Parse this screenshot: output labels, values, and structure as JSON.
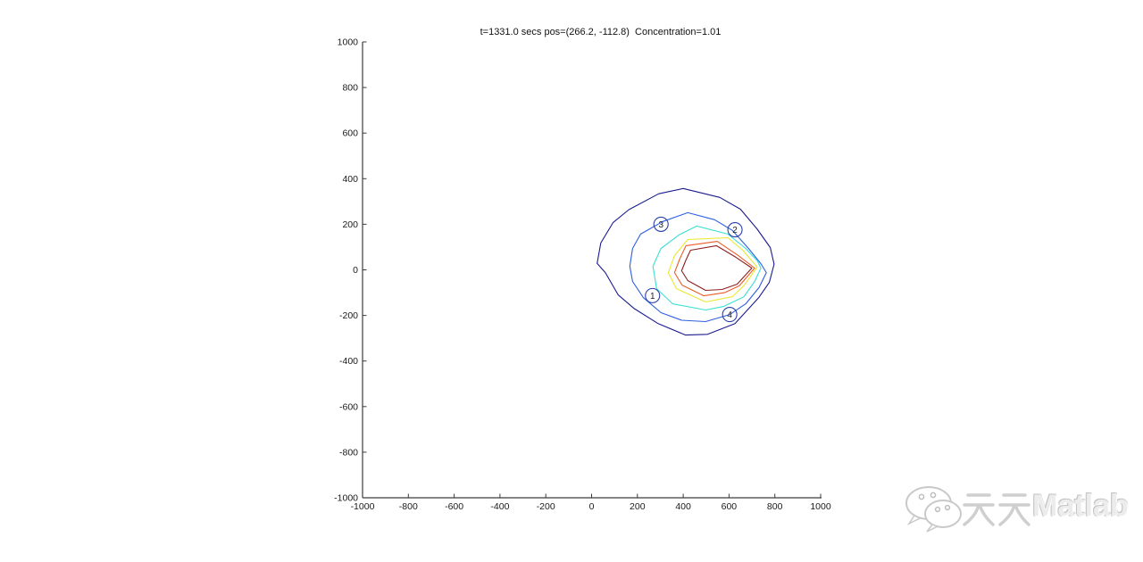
{
  "figure": {
    "background": "#ffffff"
  },
  "chart_data": {
    "type": "contour",
    "title": "t=1331.0 secs pos=(266.2, -112.8)  Concentration=1.01",
    "xlabel": "",
    "ylabel": "",
    "xlim": [
      -1000,
      1000
    ],
    "ylim": [
      -1000,
      1000
    ],
    "xticks": [
      -1000,
      -800,
      -600,
      -400,
      -200,
      0,
      200,
      400,
      600,
      800,
      1000
    ],
    "yticks": [
      -1000,
      -800,
      -600,
      -400,
      -200,
      0,
      200,
      400,
      600,
      800,
      1000
    ],
    "grid": false,
    "legend_position": "none",
    "axis_color": "#3c3c3c",
    "tick_label_color": "#1a1a1a",
    "contour_levels": [
      {
        "index": 1,
        "color": "#1b1b8f",
        "points": [
          [
            400,
            357
          ],
          [
            560,
            318
          ],
          [
            650,
            266
          ],
          [
            722,
            180
          ],
          [
            780,
            98
          ],
          [
            797,
            25
          ],
          [
            776,
            -55
          ],
          [
            731,
            -120
          ],
          [
            626,
            -236
          ],
          [
            506,
            -283
          ],
          [
            410,
            -286
          ],
          [
            291,
            -236
          ],
          [
            186,
            -170
          ],
          [
            116,
            -110
          ],
          [
            60,
            -12
          ],
          [
            24,
            28
          ],
          [
            40,
            118
          ],
          [
            94,
            208
          ],
          [
            163,
            264
          ],
          [
            293,
            334
          ]
        ]
      },
      {
        "index": 2,
        "color": "#2e5fe0",
        "points": [
          [
            420,
            251
          ],
          [
            537,
            220
          ],
          [
            615,
            173
          ],
          [
            685,
            94
          ],
          [
            739,
            27
          ],
          [
            763,
            -12
          ],
          [
            731,
            -78
          ],
          [
            673,
            -149
          ],
          [
            603,
            -196
          ],
          [
            498,
            -227
          ],
          [
            393,
            -221
          ],
          [
            303,
            -188
          ],
          [
            226,
            -122
          ],
          [
            179,
            -51
          ],
          [
            167,
            16
          ],
          [
            179,
            94
          ],
          [
            214,
            157
          ],
          [
            311,
            212
          ]
        ]
      },
      {
        "index": 3,
        "color": "#3be0d4",
        "points": [
          [
            459,
            192
          ],
          [
            595,
            157
          ],
          [
            673,
            94
          ],
          [
            724,
            39
          ],
          [
            739,
            8
          ],
          [
            712,
            -51
          ],
          [
            665,
            -118
          ],
          [
            576,
            -161
          ],
          [
            498,
            -176
          ],
          [
            354,
            -149
          ],
          [
            284,
            -82
          ],
          [
            268,
            16
          ],
          [
            303,
            94
          ],
          [
            381,
            153
          ]
        ]
      },
      {
        "index": 4,
        "color": "#e8e832",
        "points": [
          [
            420,
            133
          ],
          [
            595,
            141
          ],
          [
            660,
            86
          ],
          [
            723,
            12
          ],
          [
            667,
            -67
          ],
          [
            615,
            -118
          ],
          [
            498,
            -141
          ],
          [
            370,
            -82
          ],
          [
            335,
            -12
          ],
          [
            362,
            63
          ]
        ]
      },
      {
        "index": 5,
        "color": "#ea5c28",
        "points": [
          [
            412,
            106
          ],
          [
            549,
            125
          ],
          [
            640,
            63
          ],
          [
            712,
            8
          ],
          [
            645,
            -70
          ],
          [
            580,
            -100
          ],
          [
            490,
            -114
          ],
          [
            395,
            -67
          ],
          [
            362,
            -12
          ],
          [
            385,
            49
          ]
        ]
      },
      {
        "index": 6,
        "color": "#8e1f1f",
        "points": [
          [
            432,
            86
          ],
          [
            545,
            106
          ],
          [
            630,
            55
          ],
          [
            700,
            8
          ],
          [
            635,
            -63
          ],
          [
            570,
            -86
          ],
          [
            498,
            -90
          ],
          [
            420,
            -47
          ],
          [
            393,
            -4
          ],
          [
            410,
            39
          ]
        ]
      }
    ],
    "sensor_markers": [
      {
        "label": "1",
        "x": 266,
        "y": -113
      },
      {
        "label": "2",
        "x": 626,
        "y": 176
      },
      {
        "label": "3",
        "x": 303,
        "y": 200
      },
      {
        "label": "4",
        "x": 603,
        "y": -196
      }
    ],
    "marker_style": {
      "ring_color": "#2a3fa8",
      "label_color": "#222222"
    }
  },
  "watermark": {
    "full_text": "天天Matlab",
    "latin_part": "Matlab",
    "color": "#d6d6d6"
  }
}
